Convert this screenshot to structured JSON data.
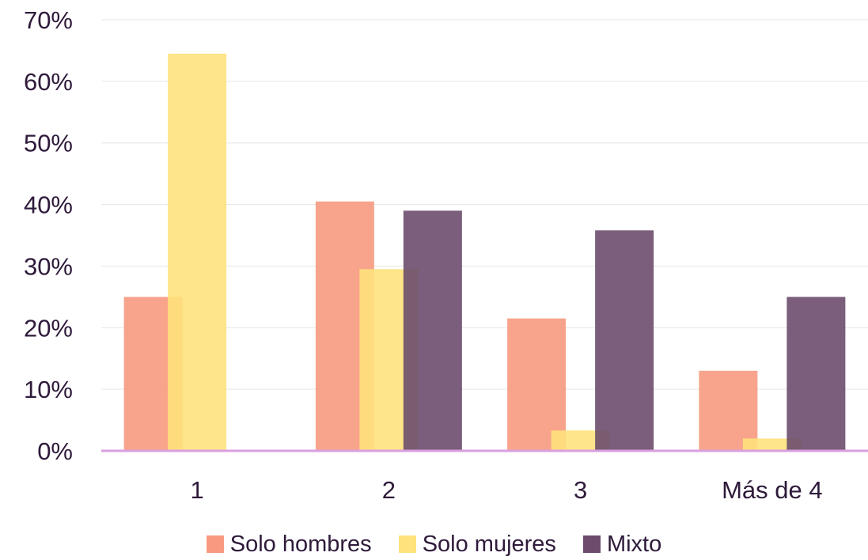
{
  "chart_data": {
    "type": "bar",
    "categories": [
      "1",
      "2",
      "3",
      "Más de 4"
    ],
    "series": [
      {
        "name": "Solo hombres",
        "values": [
          25,
          40.5,
          21.5,
          13
        ],
        "color": "#f79a7f"
      },
      {
        "name": "Solo mujeres",
        "values": [
          64.5,
          29.5,
          3.3,
          2
        ],
        "color": "#fee27c"
      },
      {
        "name": "Mixto",
        "values": [
          0,
          39,
          35.8,
          25
        ],
        "color": "#6b4c6d"
      }
    ],
    "ylim": [
      0,
      70
    ],
    "yticks": [
      "0%",
      "10%",
      "20%",
      "30%",
      "40%",
      "50%",
      "60%",
      "70%"
    ],
    "grid": true,
    "legend_position": "bottom",
    "axis_color": "#d99fe0",
    "grid_color": "#e6e6e6"
  }
}
